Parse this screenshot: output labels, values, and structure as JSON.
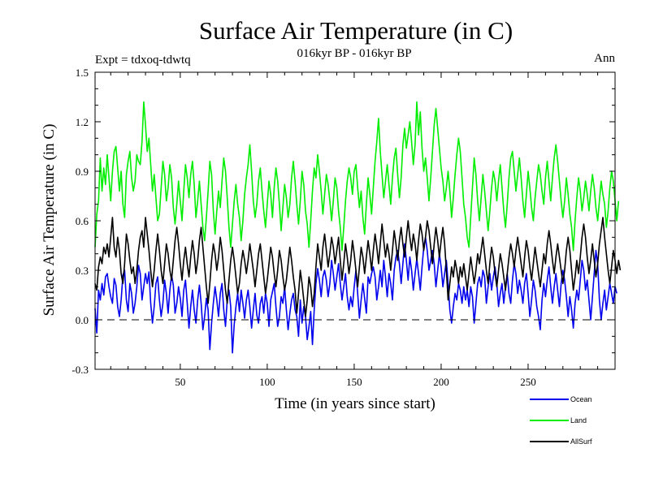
{
  "chart_data": {
    "type": "line",
    "title": "Surface Air Temperature (in C)",
    "subtitle_left": "Expt = tdxoq-tdwtq",
    "subtitle_center": "016kyr BP - 016kyr BP",
    "subtitle_right": "Ann",
    "xlabel": "Time (in years since start)",
    "ylabel": "Surface Air Temperature (in C)",
    "xlim": [
      1,
      300
    ],
    "ylim": [
      -0.3,
      1.5
    ],
    "x_ticks": [
      50,
      100,
      150,
      200,
      250
    ],
    "x_tick_labels": [
      "50",
      "100",
      "150",
      "200",
      "250"
    ],
    "y_ticks": [
      -0.3,
      0.0,
      0.3,
      0.6,
      0.9,
      1.2,
      1.5
    ],
    "y_tick_labels": [
      "-0.3",
      "0.0",
      "0.3",
      "0.6",
      "0.9",
      "1.2",
      "1.5"
    ],
    "zero_line": "dashed",
    "legend_position": "bottom-right",
    "series": [
      {
        "name": "Ocean",
        "color": "#0000ee",
        "x_start": 1,
        "x_step": 1,
        "values": [
          0.07,
          -0.08,
          0.18,
          0.12,
          0.22,
          0.15,
          0.26,
          0.28,
          0.2,
          0.14,
          0.1,
          0.25,
          0.21,
          0.08,
          0.02,
          0.12,
          0.27,
          0.3,
          0.12,
          0.05,
          0.22,
          0.16,
          0.04,
          0.1,
          0.2,
          0.33,
          0.28,
          0.12,
          0.2,
          0.28,
          0.22,
          0.29,
          0.1,
          -0.02,
          0.08,
          0.22,
          0.26,
          0.12,
          0.02,
          0.1,
          0.24,
          0.16,
          0.04,
          0.18,
          0.27,
          0.21,
          0.04,
          0.1,
          0.2,
          0.13,
          0.02,
          0.18,
          0.24,
          0.1,
          -0.05,
          0.08,
          0.18,
          0.06,
          -0.02,
          0.12,
          0.21,
          0.1,
          -0.06,
          0.02,
          0.13,
          0.06,
          -0.18,
          -0.02,
          0.1,
          0.2,
          0.12,
          0.02,
          0.16,
          0.22,
          0.06,
          -0.04,
          0.12,
          0.18,
          0.08,
          -0.2,
          -0.03,
          0.08,
          0.16,
          0.05,
          0.18,
          0.1,
          0.01,
          0.12,
          0.18,
          0.08,
          -0.05,
          0.06,
          0.16,
          0.03,
          -0.02,
          0.1,
          0.14,
          0.04,
          0.16,
          0.1,
          -0.04,
          0.12,
          0.17,
          0.22,
          0.08,
          -0.04,
          0.02,
          0.14,
          0.1,
          0.2,
          0.06,
          -0.06,
          0.04,
          0.12,
          0.16,
          0.06,
          0.02,
          -0.1,
          0.12,
          -0.02,
          0.08,
          0.02,
          -0.12,
          -0.04,
          0.05,
          -0.15,
          0.06,
          0.22,
          0.31,
          0.24,
          0.14,
          0.26,
          0.3,
          0.24,
          0.14,
          0.22,
          0.36,
          0.28,
          0.18,
          0.26,
          0.34,
          0.22,
          0.12,
          0.2,
          0.28,
          0.14,
          0.06,
          0.14,
          0.08,
          0.2,
          0.3,
          0.16,
          0.01,
          0.12,
          0.22,
          0.13,
          0.04,
          0.26,
          0.22,
          0.28,
          0.32,
          0.26,
          0.12,
          0.2,
          0.3,
          0.2,
          0.36,
          0.26,
          0.14,
          0.28,
          0.22,
          0.12,
          0.3,
          0.38,
          0.42,
          0.34,
          0.22,
          0.34,
          0.46,
          0.36,
          0.24,
          0.38,
          0.3,
          0.18,
          0.28,
          0.37,
          0.28,
          0.18,
          0.32,
          0.44,
          0.5,
          0.42,
          0.3,
          0.36,
          0.42,
          0.34,
          0.2,
          0.3,
          0.4,
          0.32,
          0.2,
          0.28,
          0.36,
          0.22,
          0.06,
          -0.02,
          0.08,
          0.16,
          0.12,
          0.22,
          0.18,
          0.1,
          0.2,
          0.12,
          0.18,
          0.08,
          0.2,
          0.14,
          -0.02,
          0.1,
          0.22,
          0.26,
          0.2,
          0.3,
          0.26,
          0.1,
          0.2,
          0.28,
          0.18,
          0.26,
          0.32,
          0.22,
          0.08,
          0.16,
          0.22,
          0.1,
          0.2,
          0.28,
          0.16,
          0.1,
          0.24,
          0.34,
          0.28,
          0.16,
          0.24,
          0.18,
          0.1,
          0.22,
          0.28,
          0.16,
          0.02,
          0.12,
          0.24,
          0.18,
          0.08,
          0.02,
          -0.06,
          0.12,
          0.22,
          0.14,
          0.24,
          0.32,
          0.2,
          0.1,
          0.2,
          0.28,
          0.18,
          0.08,
          0.22,
          0.3,
          0.24,
          0.14,
          0.02,
          0.14,
          0.06,
          -0.05,
          0.1,
          0.18,
          0.12,
          0.24,
          0.36,
          0.3,
          0.18,
          0.24,
          0.12,
          0.0,
          0.14,
          0.28,
          0.42,
          0.34,
          0.12,
          0.0,
          0.1,
          0.18,
          0.06,
          0.14,
          0.22,
          0.16,
          0.1,
          0.2,
          0.16
        ]
      },
      {
        "name": "Land",
        "color": "#00ee00",
        "x_start": 1,
        "x_step": 1,
        "values": [
          0.44,
          0.64,
          0.72,
          0.98,
          0.78,
          0.92,
          0.82,
          1.0,
          0.86,
          0.72,
          0.9,
          1.02,
          1.05,
          0.92,
          0.78,
          0.9,
          0.7,
          0.62,
          0.88,
          0.96,
          1.02,
          0.86,
          0.78,
          0.84,
          1.0,
          0.96,
          0.94,
          1.08,
          1.32,
          1.18,
          1.02,
          1.1,
          0.94,
          0.78,
          0.88,
          0.74,
          0.6,
          0.64,
          0.8,
          0.96,
          0.88,
          0.72,
          0.8,
          0.94,
          0.86,
          0.68,
          0.58,
          0.7,
          0.84,
          0.72,
          0.6,
          0.78,
          0.94,
          0.86,
          0.74,
          0.88,
          0.96,
          0.82,
          0.62,
          0.72,
          0.84,
          0.7,
          0.56,
          0.48,
          0.62,
          0.78,
          0.96,
          0.88,
          0.66,
          0.52,
          0.66,
          0.78,
          0.68,
          0.84,
          0.98,
          0.9,
          0.74,
          0.56,
          0.44,
          0.58,
          0.72,
          0.82,
          0.7,
          0.62,
          0.48,
          0.6,
          0.76,
          0.86,
          0.94,
          1.06,
          0.9,
          0.72,
          0.62,
          0.7,
          0.84,
          0.92,
          0.78,
          0.66,
          0.56,
          0.7,
          0.84,
          0.76,
          0.62,
          0.8,
          0.92,
          0.84,
          0.7,
          0.54,
          0.68,
          0.82,
          0.74,
          0.62,
          0.7,
          0.86,
          0.96,
          0.84,
          0.7,
          0.58,
          0.72,
          0.9,
          0.82,
          0.66,
          0.58,
          0.44,
          0.6,
          0.78,
          0.92,
          0.86,
          1.0,
          0.9,
          0.78,
          0.64,
          0.76,
          0.88,
          0.82,
          0.72,
          0.6,
          0.72,
          0.86,
          0.8,
          0.66,
          0.56,
          0.42,
          0.56,
          0.72,
          0.84,
          0.92,
          0.86,
          0.76,
          0.9,
          0.94,
          0.8,
          0.68,
          0.78,
          0.62,
          0.52,
          0.7,
          0.86,
          0.76,
          0.64,
          0.8,
          0.96,
          1.08,
          1.22,
          1.02,
          0.88,
          0.74,
          0.84,
          0.94,
          0.82,
          0.7,
          0.86,
          0.98,
          1.04,
          0.88,
          0.74,
          0.86,
          1.06,
          1.16,
          1.04,
          1.12,
          1.2,
          1.08,
          0.94,
          1.06,
          1.32,
          1.12,
          1.26,
          1.04,
          0.9,
          0.98,
          0.86,
          0.72,
          0.86,
          1.02,
          1.18,
          1.28,
          1.16,
          1.04,
          0.92,
          0.84,
          0.72,
          0.8,
          0.9,
          0.78,
          0.62,
          0.74,
          0.88,
          1.0,
          1.1,
          1.02,
          0.86,
          0.7,
          0.62,
          0.5,
          0.44,
          0.62,
          0.8,
          0.98,
          0.88,
          0.72,
          0.6,
          0.74,
          0.88,
          0.78,
          0.66,
          0.54,
          0.66,
          0.8,
          0.9,
          0.84,
          0.72,
          0.84,
          0.94,
          0.8,
          0.66,
          0.56,
          0.7,
          0.86,
          0.98,
          1.02,
          0.9,
          0.78,
          0.88,
          0.98,
          0.86,
          0.72,
          0.62,
          0.76,
          0.9,
          0.8,
          0.68,
          0.6,
          0.74,
          0.84,
          0.94,
          0.88,
          0.78,
          0.7,
          0.86,
          0.96,
          0.84,
          0.72,
          0.86,
          0.98,
          1.06,
          0.96,
          0.84,
          0.72,
          0.62,
          0.72,
          0.86,
          0.76,
          0.64,
          0.56,
          0.42,
          0.6,
          0.74,
          0.86,
          0.78,
          0.66,
          0.74,
          0.84,
          0.76,
          0.66,
          0.78,
          0.88,
          0.8,
          0.68,
          0.6,
          0.72,
          0.84,
          0.76,
          0.7,
          0.56,
          0.66,
          0.8,
          0.9,
          0.84,
          0.72,
          0.6,
          0.72
        ]
      },
      {
        "name": "AllSurf",
        "color": "#000000",
        "x_start": 1,
        "x_step": 1,
        "values": [
          0.22,
          0.18,
          0.32,
          0.38,
          0.34,
          0.44,
          0.4,
          0.46,
          0.38,
          0.5,
          0.62,
          0.44,
          0.38,
          0.5,
          0.42,
          0.28,
          0.22,
          0.34,
          0.52,
          0.46,
          0.36,
          0.28,
          0.32,
          0.22,
          0.3,
          0.42,
          0.5,
          0.54,
          0.44,
          0.62,
          0.52,
          0.42,
          0.3,
          0.2,
          0.3,
          0.42,
          0.52,
          0.42,
          0.3,
          0.22,
          0.34,
          0.46,
          0.4,
          0.3,
          0.24,
          0.36,
          0.48,
          0.56,
          0.46,
          0.34,
          0.24,
          0.36,
          0.44,
          0.34,
          0.26,
          0.38,
          0.48,
          0.4,
          0.28,
          0.36,
          0.48,
          0.56,
          0.44,
          0.32,
          0.2,
          0.1,
          0.22,
          0.36,
          0.46,
          0.4,
          0.3,
          0.38,
          0.5,
          0.42,
          0.3,
          0.18,
          0.1,
          0.24,
          0.36,
          0.44,
          0.36,
          0.26,
          0.16,
          0.22,
          0.34,
          0.42,
          0.36,
          0.28,
          0.36,
          0.46,
          0.38,
          0.3,
          0.2,
          0.3,
          0.4,
          0.46,
          0.36,
          0.26,
          0.16,
          0.24,
          0.34,
          0.44,
          0.38,
          0.28,
          0.2,
          0.3,
          0.42,
          0.36,
          0.26,
          0.18,
          0.24,
          0.34,
          0.44,
          0.36,
          0.26,
          0.18,
          0.04,
          0.16,
          0.3,
          0.22,
          0.12,
          0.02,
          0.12,
          0.26,
          0.2,
          0.08,
          0.16,
          0.32,
          0.46,
          0.38,
          0.3,
          0.44,
          0.52,
          0.42,
          0.32,
          0.4,
          0.5,
          0.44,
          0.34,
          0.42,
          0.5,
          0.36,
          0.24,
          0.34,
          0.46,
          0.38,
          0.28,
          0.36,
          0.48,
          0.4,
          0.3,
          0.2,
          0.32,
          0.44,
          0.38,
          0.28,
          0.38,
          0.48,
          0.4,
          0.3,
          0.42,
          0.52,
          0.44,
          0.34,
          0.46,
          0.58,
          0.48,
          0.38,
          0.46,
          0.4,
          0.3,
          0.42,
          0.54,
          0.46,
          0.36,
          0.48,
          0.56,
          0.46,
          0.38,
          0.5,
          0.6,
          0.5,
          0.42,
          0.52,
          0.46,
          0.36,
          0.48,
          0.58,
          0.52,
          0.42,
          0.5,
          0.6,
          0.54,
          0.44,
          0.34,
          0.46,
          0.56,
          0.48,
          0.38,
          0.48,
          0.56,
          0.46,
          0.3,
          0.12,
          0.22,
          0.32,
          0.26,
          0.36,
          0.3,
          0.22,
          0.32,
          0.26,
          0.34,
          0.26,
          0.18,
          0.28,
          0.38,
          0.3,
          0.22,
          0.3,
          0.4,
          0.34,
          0.42,
          0.5,
          0.4,
          0.3,
          0.22,
          0.34,
          0.44,
          0.38,
          0.28,
          0.2,
          0.3,
          0.4,
          0.34,
          0.26,
          0.18,
          0.28,
          0.38,
          0.46,
          0.4,
          0.32,
          0.42,
          0.5,
          0.42,
          0.34,
          0.26,
          0.38,
          0.48,
          0.42,
          0.32,
          0.24,
          0.34,
          0.44,
          0.36,
          0.28,
          0.2,
          0.3,
          0.4,
          0.34,
          0.46,
          0.54,
          0.46,
          0.36,
          0.28,
          0.38,
          0.46,
          0.38,
          0.3,
          0.22,
          0.3,
          0.42,
          0.5,
          0.42,
          0.3,
          0.18,
          0.26,
          0.36,
          0.28,
          0.38,
          0.5,
          0.58,
          0.5,
          0.38,
          0.28,
          0.36,
          0.46,
          0.36,
          0.26,
          0.34,
          0.46,
          0.54,
          0.62,
          0.5,
          0.4,
          0.3,
          0.22,
          0.32,
          0.42,
          0.36,
          0.28,
          0.36,
          0.3
        ]
      }
    ]
  }
}
